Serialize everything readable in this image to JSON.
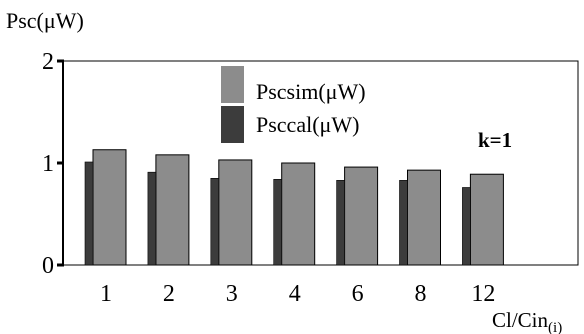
{
  "chart_data": {
    "type": "bar",
    "ylabel": "Psc(μW)",
    "xlabel_main": "Cl/Cin",
    "xlabel_sub": "(i)",
    "annotation": "k=1",
    "categories": [
      "1",
      "2",
      "3",
      "4",
      "6",
      "8",
      "12"
    ],
    "ylim": [
      0,
      2
    ],
    "yticks": [
      "0",
      "1",
      "2"
    ],
    "legend_position": "top-center",
    "series": [
      {
        "name": "Pscsim(μW)",
        "color": "#8c8c8c",
        "values": [
          1.13,
          1.08,
          1.03,
          1.0,
          0.96,
          0.93,
          0.89
        ]
      },
      {
        "name": "Psccal(μW)",
        "color": "#3c3c3c",
        "values": [
          1.01,
          0.91,
          0.85,
          0.84,
          0.83,
          0.83,
          0.76
        ]
      }
    ]
  }
}
